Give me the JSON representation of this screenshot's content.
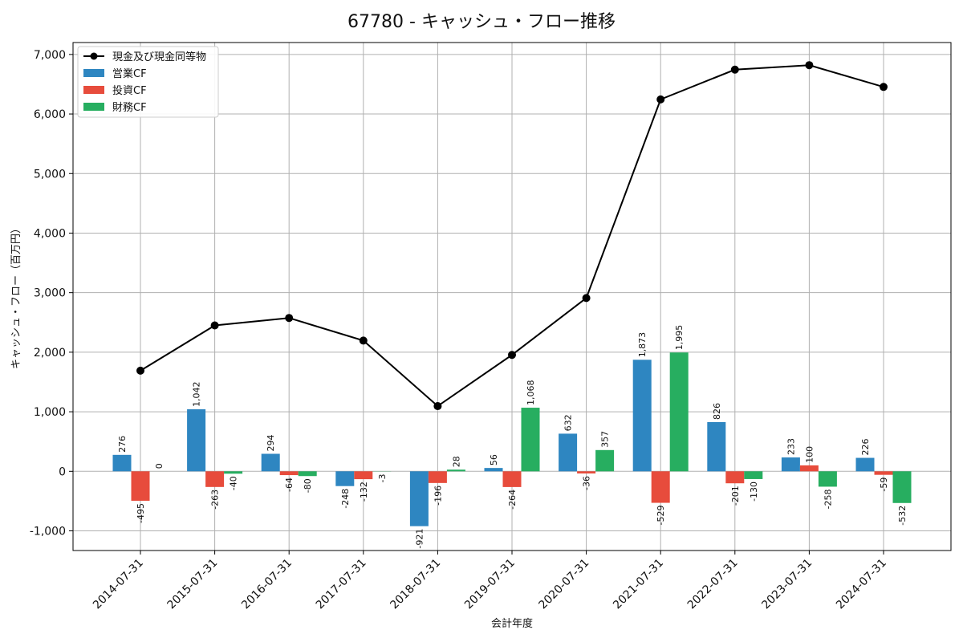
{
  "chart_data": {
    "type": "bar",
    "title": "67780 - キャッシュ・フロー推移",
    "xlabel": "会計年度",
    "ylabel": "キャッシュ・フロー（百万円）",
    "ylim": [
      -1330,
      7200
    ],
    "yticks": [
      -1000,
      0,
      1000,
      2000,
      3000,
      4000,
      5000,
      6000,
      7000
    ],
    "ytick_labels": [
      "-1,000",
      "0",
      "1,000",
      "2,000",
      "3,000",
      "4,000",
      "5,000",
      "6,000",
      "7,000"
    ],
    "grid": true,
    "legend_position": "top-left",
    "categories": [
      "2014-07-31",
      "2015-07-31",
      "2016-07-31",
      "2017-07-31",
      "2018-07-31",
      "2019-07-31",
      "2020-07-31",
      "2021-07-31",
      "2022-07-31",
      "2023-07-31",
      "2024-07-31"
    ],
    "line": {
      "name": "現金及び現金同等物",
      "color": "#000000",
      "values": [
        1690,
        2450,
        2575,
        2195,
        1095,
        1955,
        2910,
        6245,
        6745,
        6820,
        6455
      ]
    },
    "series": [
      {
        "name": "営業CF",
        "color": "#2e86c1",
        "values": [
          276,
          1042,
          294,
          -248,
          -921,
          56,
          632,
          1873,
          826,
          233,
          226
        ],
        "labels": [
          "276",
          "1,042",
          "294",
          "-248",
          "-921",
          "56",
          "632",
          "1,873",
          "826",
          "233",
          "226"
        ]
      },
      {
        "name": "投資CF",
        "color": "#e74c3c",
        "values": [
          -495,
          -263,
          -64,
          -132,
          -196,
          -264,
          -36,
          -529,
          -201,
          100,
          -59
        ],
        "labels": [
          "-495",
          "-263",
          "-64",
          "-132",
          "-196",
          "-264",
          "-36",
          "-529",
          "-201",
          "100",
          "-59"
        ]
      },
      {
        "name": "財務CF",
        "color": "#27ae60",
        "values": [
          0,
          -40,
          -80,
          -3,
          28,
          1068,
          357,
          1995,
          -130,
          -258,
          -532
        ],
        "labels": [
          "0",
          "-40",
          "-80",
          "-3",
          "28",
          "1,068",
          "357",
          "1,995",
          "-130",
          "-258",
          "-532"
        ]
      }
    ]
  }
}
